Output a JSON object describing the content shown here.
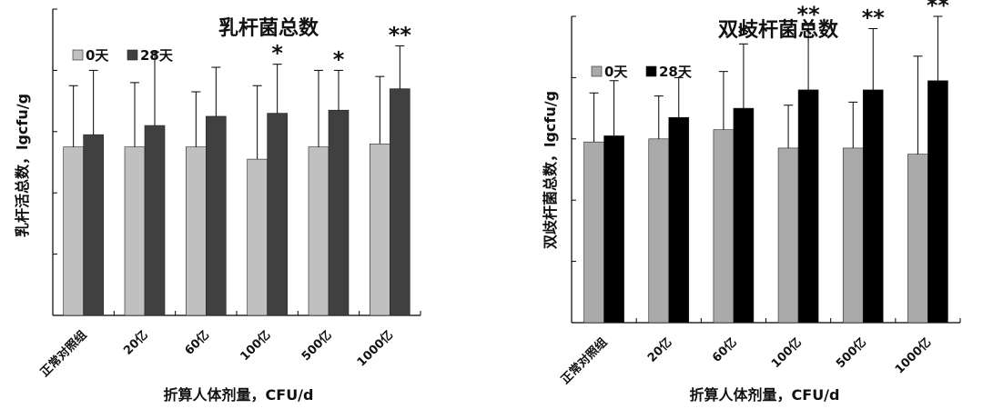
{
  "chart_data": [
    {
      "type": "bar",
      "title": "乳杆菌总数",
      "xlabel": "折算人体剂量，CFU/d",
      "ylabel": "乳杆活总数，lgcfu/g",
      "categories": [
        "正常对照组",
        "20亿",
        "60亿",
        "100亿",
        "500亿",
        "1000亿"
      ],
      "ylim": [
        0,
        10
      ],
      "grid": false,
      "legend_position": "top-left",
      "series": [
        {
          "name": "0天",
          "color": "#c0c0c0",
          "values": [
            5.5,
            5.5,
            5.5,
            5.1,
            5.5,
            5.6
          ],
          "errors": [
            2.0,
            2.1,
            1.8,
            2.4,
            2.5,
            2.2
          ]
        },
        {
          "name": "28天",
          "color": "#404040",
          "values": [
            5.9,
            6.2,
            6.5,
            6.6,
            6.7,
            7.4
          ],
          "errors": [
            2.1,
            2.4,
            1.6,
            1.6,
            1.3,
            1.4
          ]
        }
      ],
      "significance": [
        "",
        "",
        "",
        "*",
        "*",
        "**"
      ]
    },
    {
      "type": "bar",
      "title": "双歧杆菌总数",
      "xlabel": "折算人体剂量，CFU/d",
      "ylabel": "双歧杆菌总数，lgcfu/g",
      "categories": [
        "正常对照组",
        "20亿",
        "60亿",
        "100亿",
        "500亿",
        "1000亿"
      ],
      "ylim": [
        0,
        10
      ],
      "grid": false,
      "legend_position": "top-left",
      "series": [
        {
          "name": "0天",
          "color": "#aaaaaa",
          "values": [
            5.9,
            6.0,
            6.3,
            5.7,
            5.7,
            5.5
          ],
          "errors": [
            1.6,
            1.4,
            1.9,
            1.4,
            1.5,
            3.2
          ]
        },
        {
          "name": "28天",
          "color": "#000000",
          "values": [
            6.1,
            6.7,
            7.0,
            7.6,
            7.6,
            7.9
          ],
          "errors": [
            1.8,
            1.3,
            2.1,
            2.1,
            2.0,
            2.1
          ]
        }
      ],
      "significance": [
        "",
        "",
        "*",
        "**",
        "**",
        "**"
      ]
    }
  ]
}
